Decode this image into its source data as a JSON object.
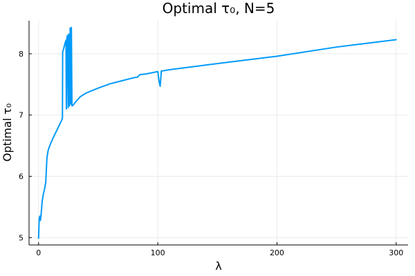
{
  "chart_data": {
    "type": "line",
    "title": "Optimal τ₀, N=5",
    "xlabel": "λ",
    "ylabel": "Optimal τ₀",
    "xlim": [
      -8,
      310
    ],
    "ylim": [
      4.88,
      8.54
    ],
    "xticks": [
      0,
      100,
      200,
      300
    ],
    "yticks": [
      5,
      6,
      7,
      8
    ],
    "grid": true,
    "legend": "none",
    "line_color": "#009af9",
    "series": [
      {
        "name": "y1",
        "x": [
          0,
          0.5,
          1,
          1.5,
          2,
          3,
          4,
          5,
          6,
          7,
          8,
          9,
          10,
          12,
          14,
          16,
          18,
          19.5,
          20,
          20.2,
          21,
          22,
          23,
          23.3,
          23.7,
          24.2,
          24.8,
          25.3,
          26,
          26.5,
          27,
          27.5,
          28,
          29,
          30,
          35,
          40,
          50,
          60,
          70,
          80,
          83,
          85,
          90,
          95,
          100,
          101,
          102,
          103,
          104,
          110,
          150,
          200,
          250,
          300
        ],
        "y": [
          4.99,
          5.31,
          5.35,
          5.28,
          5.35,
          5.59,
          5.71,
          5.79,
          5.9,
          6.3,
          6.42,
          6.48,
          6.53,
          6.62,
          6.7,
          6.78,
          6.86,
          6.92,
          6.95,
          8.03,
          8.08,
          8.16,
          8.22,
          7.1,
          8.25,
          8.3,
          7.12,
          8.32,
          7.15,
          8.42,
          7.18,
          8.43,
          7.15,
          7.16,
          7.19,
          7.3,
          7.36,
          7.44,
          7.51,
          7.56,
          7.61,
          7.62,
          7.66,
          7.67,
          7.69,
          7.71,
          7.56,
          7.47,
          7.72,
          7.72,
          7.74,
          7.84,
          7.96,
          8.11,
          8.23
        ]
      }
    ]
  }
}
